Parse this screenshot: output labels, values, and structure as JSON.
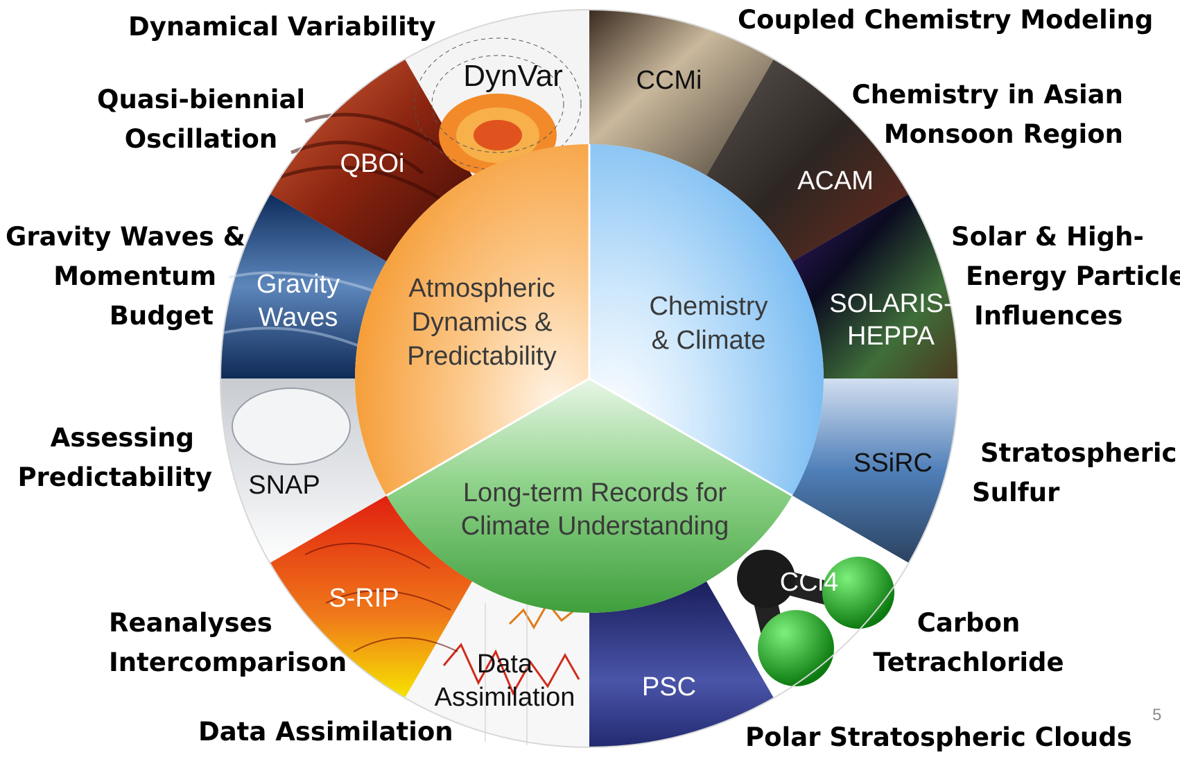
{
  "center": {
    "dynamics": [
      "Atmospheric",
      "Dynamics &",
      "Predictability"
    ],
    "chemistry": [
      "Chemistry",
      "& Climate"
    ],
    "records": [
      "Long-term Records for",
      "Climate Understanding"
    ]
  },
  "segments": {
    "dynvar": "DynVar",
    "ccmi": "CCMi",
    "acam": "ACAM",
    "solaris": [
      "SOLARIS-",
      "HEPPA"
    ],
    "ssirc": "SSiRC",
    "ccl4": "CCl4",
    "psc": "PSC",
    "data_assimilation": [
      "Data",
      "Assimilation"
    ],
    "srip": "S-RIP",
    "snap": "SNAP",
    "gravity": [
      "Gravity",
      "Waves"
    ],
    "qboi": "QBOi"
  },
  "labels": {
    "dynamical_variability": "Dynamical Variability",
    "coupled_chemistry": "Coupled Chemistry Modeling",
    "qbo": [
      "Quasi-biennial",
      "Oscillation"
    ],
    "asian_monsoon": [
      "Chemistry in Asian",
      "Monsoon Region"
    ],
    "gravity_waves": [
      "Gravity Waves &",
      "Momentum",
      "Budget"
    ],
    "solar": [
      "Solar & High-",
      "Energy Particle",
      "Influences"
    ],
    "predictability": [
      "Assessing",
      "Predictability"
    ],
    "sulfur": [
      "Stratospheric",
      "Sulfur"
    ],
    "reanalyses": [
      "Reanalyses",
      "Intercomparison"
    ],
    "carbon_tet": [
      "Carbon",
      "Tetrachloride"
    ],
    "data_assimilation": "Data Assimilation",
    "psc": "Polar Stratospheric Clouds"
  },
  "page_number": "5",
  "colors": {
    "dynamics": "#f6a23f",
    "chemistry": "#8cc6f4",
    "records": "#4caf4c"
  }
}
